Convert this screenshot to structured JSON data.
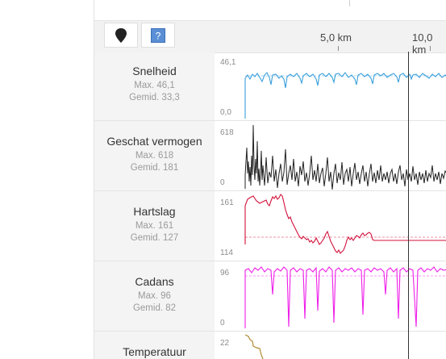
{
  "distance_axis": {
    "labels": [
      "5,0 km",
      "10,0 km"
    ]
  },
  "toolbar": {
    "buttons": [
      {
        "icon": "map-pin-icon"
      },
      {
        "icon": "help-icon"
      }
    ]
  },
  "rows": [
    {
      "name": "Snelheid",
      "max_label": "Max. 46,1",
      "avg_label": "Gemid. 33,3",
      "y_max": "46,1",
      "y_min": "0,0",
      "color": "#3a9fdc"
    },
    {
      "name": "Geschat vermogen",
      "max_label": "Max. 618",
      "avg_label": "Gemid. 181",
      "y_max": "618",
      "y_min": "0",
      "color": "#222222"
    },
    {
      "name": "Hartslag",
      "max_label": "Max. 161",
      "avg_label": "Gemid. 127",
      "y_max": "161",
      "y_min": "114",
      "color": "#d3103a"
    },
    {
      "name": "Cadans",
      "max_label": "Max. 96",
      "avg_label": "Gemid. 82",
      "y_max": "96",
      "y_min": "0",
      "color": "#ee1ee8"
    },
    {
      "name": "Temperatuur",
      "y_max": "22",
      "color": "#b08a30"
    }
  ]
}
